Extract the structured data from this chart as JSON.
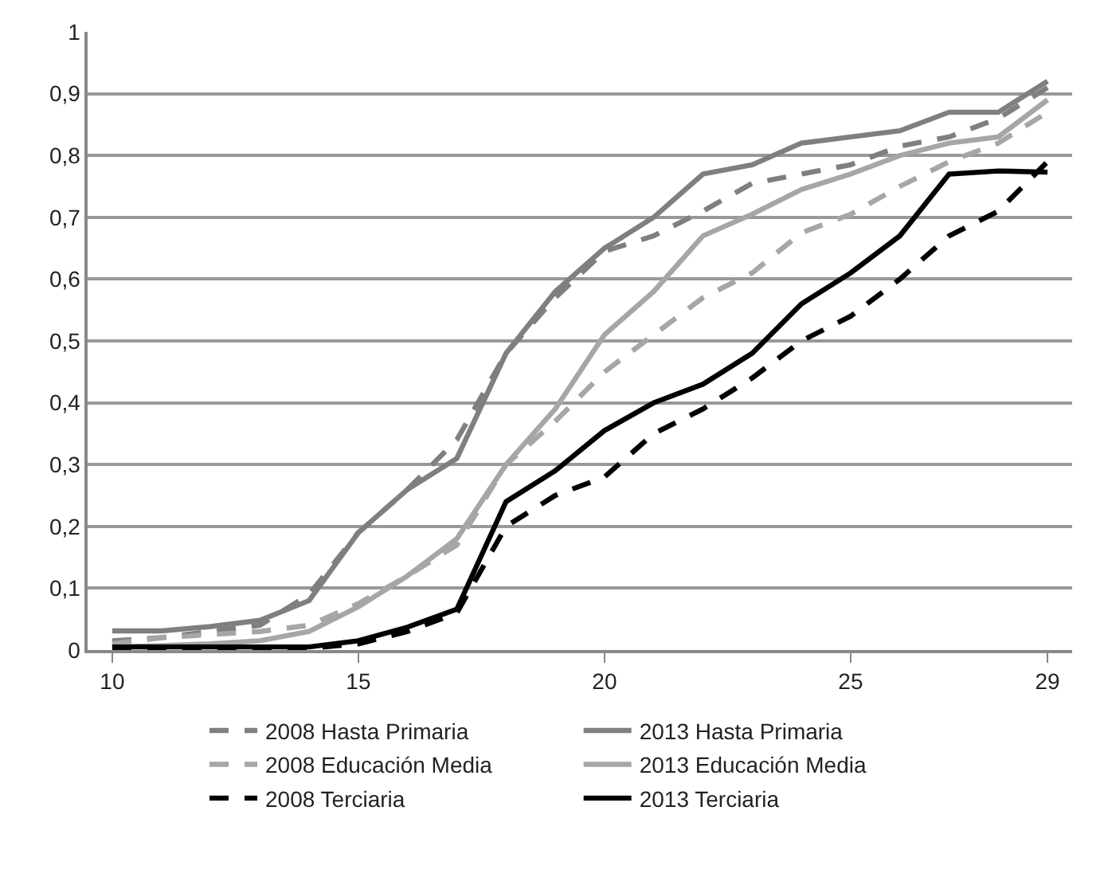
{
  "chart_data": {
    "type": "line",
    "x": [
      10,
      11,
      12,
      13,
      14,
      15,
      16,
      17,
      18,
      19,
      20,
      21,
      22,
      23,
      24,
      25,
      26,
      27,
      28,
      29
    ],
    "xlim": [
      9.5,
      29.5
    ],
    "xticks": [
      10,
      15,
      20,
      25,
      29
    ],
    "ylim": [
      0,
      1
    ],
    "yticks": [
      0,
      {
        "value": 0.1,
        "label": "0,1"
      },
      {
        "value": 0.2,
        "label": "0,2"
      },
      {
        "value": 0.3,
        "label": "0,3"
      },
      {
        "value": 0.4,
        "label": "0,4"
      },
      {
        "value": 0.5,
        "label": "0,5"
      },
      {
        "value": 0.6,
        "label": "0,6"
      },
      {
        "value": 0.7,
        "label": "0,7"
      },
      {
        "value": 0.8,
        "label": "0,8"
      },
      {
        "value": 0.9,
        "label": "0,9"
      },
      1
    ],
    "grid": "y",
    "legend": "bottom",
    "marker": "none",
    "series": [
      {
        "name": "2008 Hasta Primaria",
        "color": "#7f7f7f",
        "line_style": "dashed",
        "values": [
          0.015,
          0.02,
          0.03,
          0.04,
          0.09,
          0.19,
          0.26,
          0.34,
          0.48,
          0.57,
          0.645,
          0.67,
          0.71,
          0.755,
          0.77,
          0.785,
          0.815,
          0.83,
          0.86,
          0.91
        ]
      },
      {
        "name": "2013 Hasta Primaria",
        "color": "#7f7f7f",
        "line_style": "solid",
        "values": [
          0.031,
          0.031,
          0.038,
          0.048,
          0.08,
          0.19,
          0.26,
          0.31,
          0.48,
          0.58,
          0.65,
          0.7,
          0.77,
          0.785,
          0.82,
          0.83,
          0.84,
          0.87,
          0.87,
          0.92
        ]
      },
      {
        "name": "2008 Educación Media",
        "color": "#a6a6a6",
        "line_style": "dashed",
        "values": [
          0.01,
          0.02,
          0.025,
          0.03,
          0.04,
          0.075,
          0.12,
          0.17,
          0.3,
          0.37,
          0.45,
          0.51,
          0.57,
          0.61,
          0.675,
          0.705,
          0.75,
          0.79,
          0.82,
          0.87
        ]
      },
      {
        "name": "2013 Educación Media",
        "color": "#a6a6a6",
        "line_style": "solid",
        "values": [
          0.005,
          0.007,
          0.01,
          0.015,
          0.03,
          0.07,
          0.12,
          0.18,
          0.3,
          0.39,
          0.51,
          0.58,
          0.67,
          0.705,
          0.745,
          0.77,
          0.8,
          0.82,
          0.83,
          0.89
        ]
      },
      {
        "name": "2008 Terciaria",
        "color": "#000000",
        "line_style": "dashed",
        "values": [
          0.003,
          0.003,
          0.003,
          0.003,
          0.003,
          0.01,
          0.03,
          0.06,
          0.2,
          0.25,
          0.28,
          0.35,
          0.39,
          0.44,
          0.5,
          0.54,
          0.6,
          0.67,
          0.71,
          0.79
        ]
      },
      {
        "name": "2013 Terciaria",
        "color": "#000000",
        "line_style": "solid",
        "values": [
          0.005,
          0.005,
          0.005,
          0.005,
          0.005,
          0.015,
          0.037,
          0.066,
          0.24,
          0.29,
          0.355,
          0.4,
          0.43,
          0.48,
          0.56,
          0.61,
          0.67,
          0.77,
          0.775,
          0.773
        ]
      }
    ]
  }
}
